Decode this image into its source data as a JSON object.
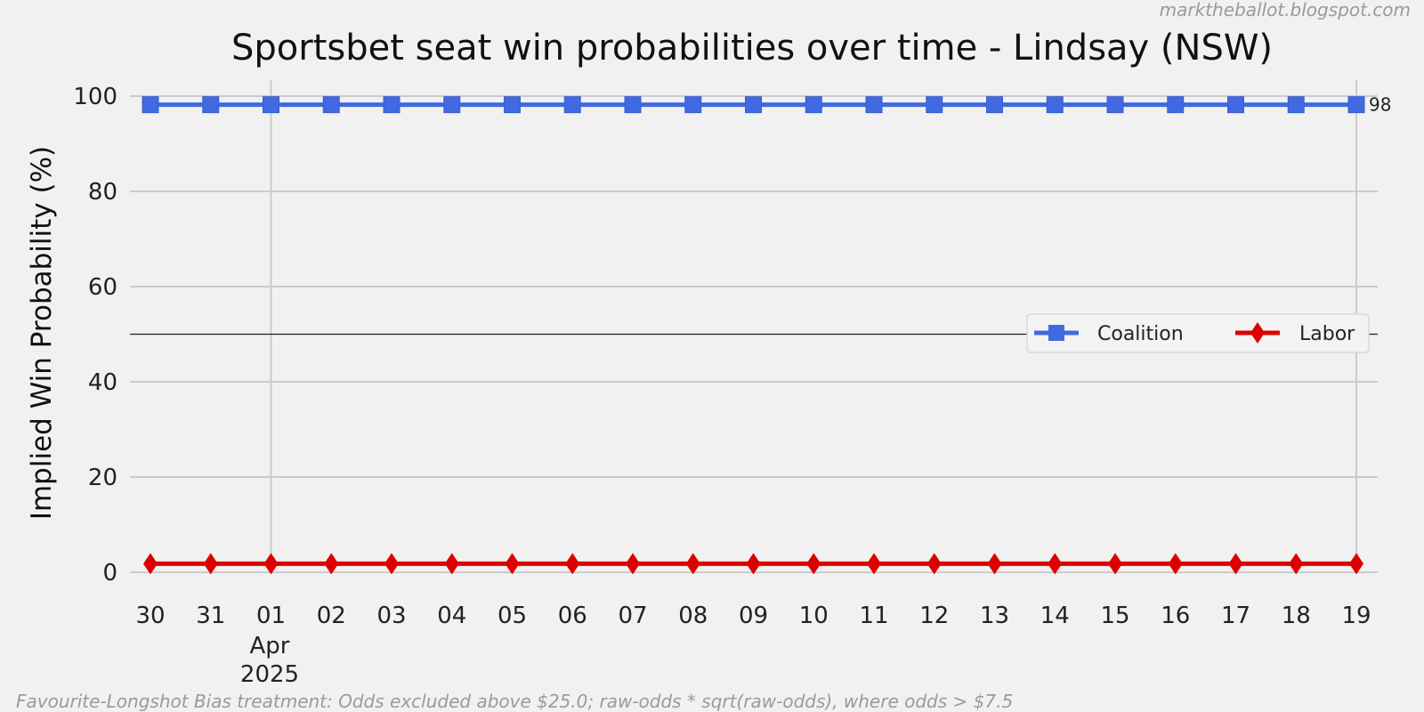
{
  "source": "marktheballot.blogspot.com",
  "footnote": "Favourite-Longshot Bias treatment: Odds excluded above $25.0; raw-odds * sqrt(raw-odds), where odds > $7.5",
  "chart_data": {
    "type": "line",
    "title": "Sportsbet seat win probabilities over time - Lindsay (NSW)",
    "xlabel": "",
    "ylabel": "Implied Win Probability (%)",
    "ylim": [
      0,
      100
    ],
    "yticks": [
      "0",
      "20",
      "40",
      "60",
      "80",
      "100"
    ],
    "x_tick_labels": [
      "30",
      "31",
      "01",
      "02",
      "03",
      "04",
      "05",
      "06",
      "07",
      "08",
      "09",
      "10",
      "11",
      "12",
      "13",
      "14",
      "15",
      "16",
      "17",
      "18",
      "19"
    ],
    "x_month_label": "Apr",
    "x_year_label": "2025",
    "x": [
      "2025-03-30",
      "2025-03-31",
      "2025-04-01",
      "2025-04-02",
      "2025-04-03",
      "2025-04-04",
      "2025-04-05",
      "2025-04-06",
      "2025-04-07",
      "2025-04-08",
      "2025-04-09",
      "2025-04-10",
      "2025-04-11",
      "2025-04-12",
      "2025-04-13",
      "2025-04-14",
      "2025-04-15",
      "2025-04-16",
      "2025-04-17",
      "2025-04-18",
      "2025-04-19"
    ],
    "reference_line": 50,
    "legend_position": "center-right",
    "grid": true,
    "series": [
      {
        "name": "Coalition",
        "color": "#4169e1",
        "marker": "square",
        "end_label": "98",
        "values": [
          98.2,
          98.2,
          98.2,
          98.2,
          98.2,
          98.2,
          98.2,
          98.2,
          98.2,
          98.2,
          98.2,
          98.2,
          98.2,
          98.2,
          98.2,
          98.2,
          98.2,
          98.2,
          98.2,
          98.2,
          98.2
        ]
      },
      {
        "name": "Labor",
        "color": "#dd0000",
        "marker": "diamond",
        "values": [
          1.8,
          1.8,
          1.8,
          1.8,
          1.8,
          1.8,
          1.8,
          1.8,
          1.8,
          1.8,
          1.8,
          1.8,
          1.8,
          1.8,
          1.8,
          1.8,
          1.8,
          1.8,
          1.8,
          1.8,
          1.8
        ]
      }
    ]
  }
}
